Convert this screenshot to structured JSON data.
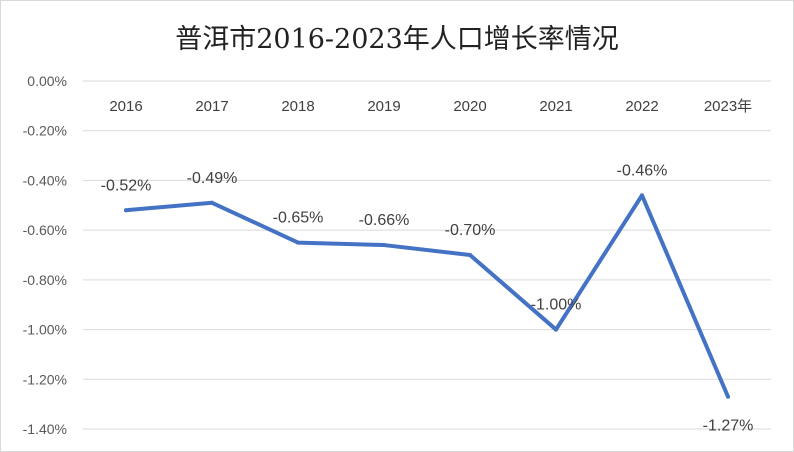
{
  "chart_data": {
    "type": "line",
    "title": "普洱市2016-2023年人口增长率情况",
    "categories": [
      "2016",
      "2017",
      "2018",
      "2019",
      "2020",
      "2021",
      "2022",
      "2023年"
    ],
    "series": [
      {
        "values": [
          -0.52,
          -0.49,
          -0.65,
          -0.66,
          -0.7,
          -1.0,
          -0.46,
          -1.27
        ],
        "labels": [
          "-0.52%",
          "-0.49%",
          "-0.65%",
          "-0.66%",
          "-0.70%",
          "-1.00%",
          "-0.46%",
          "-1.27%"
        ],
        "color": "#4472c4"
      }
    ],
    "ylim": [
      -1.4,
      0
    ],
    "yticks": [
      0,
      -0.2,
      -0.4,
      -0.6,
      -0.8,
      -1.0,
      -1.2,
      -1.4
    ],
    "ytick_labels": [
      "0.00%",
      "-0.20%",
      "-0.40%",
      "-0.60%",
      "-0.80%",
      "-1.00%",
      "-1.20%",
      "-1.40%"
    ],
    "xaxis_position": "top",
    "grid": true,
    "legend": "none"
  }
}
